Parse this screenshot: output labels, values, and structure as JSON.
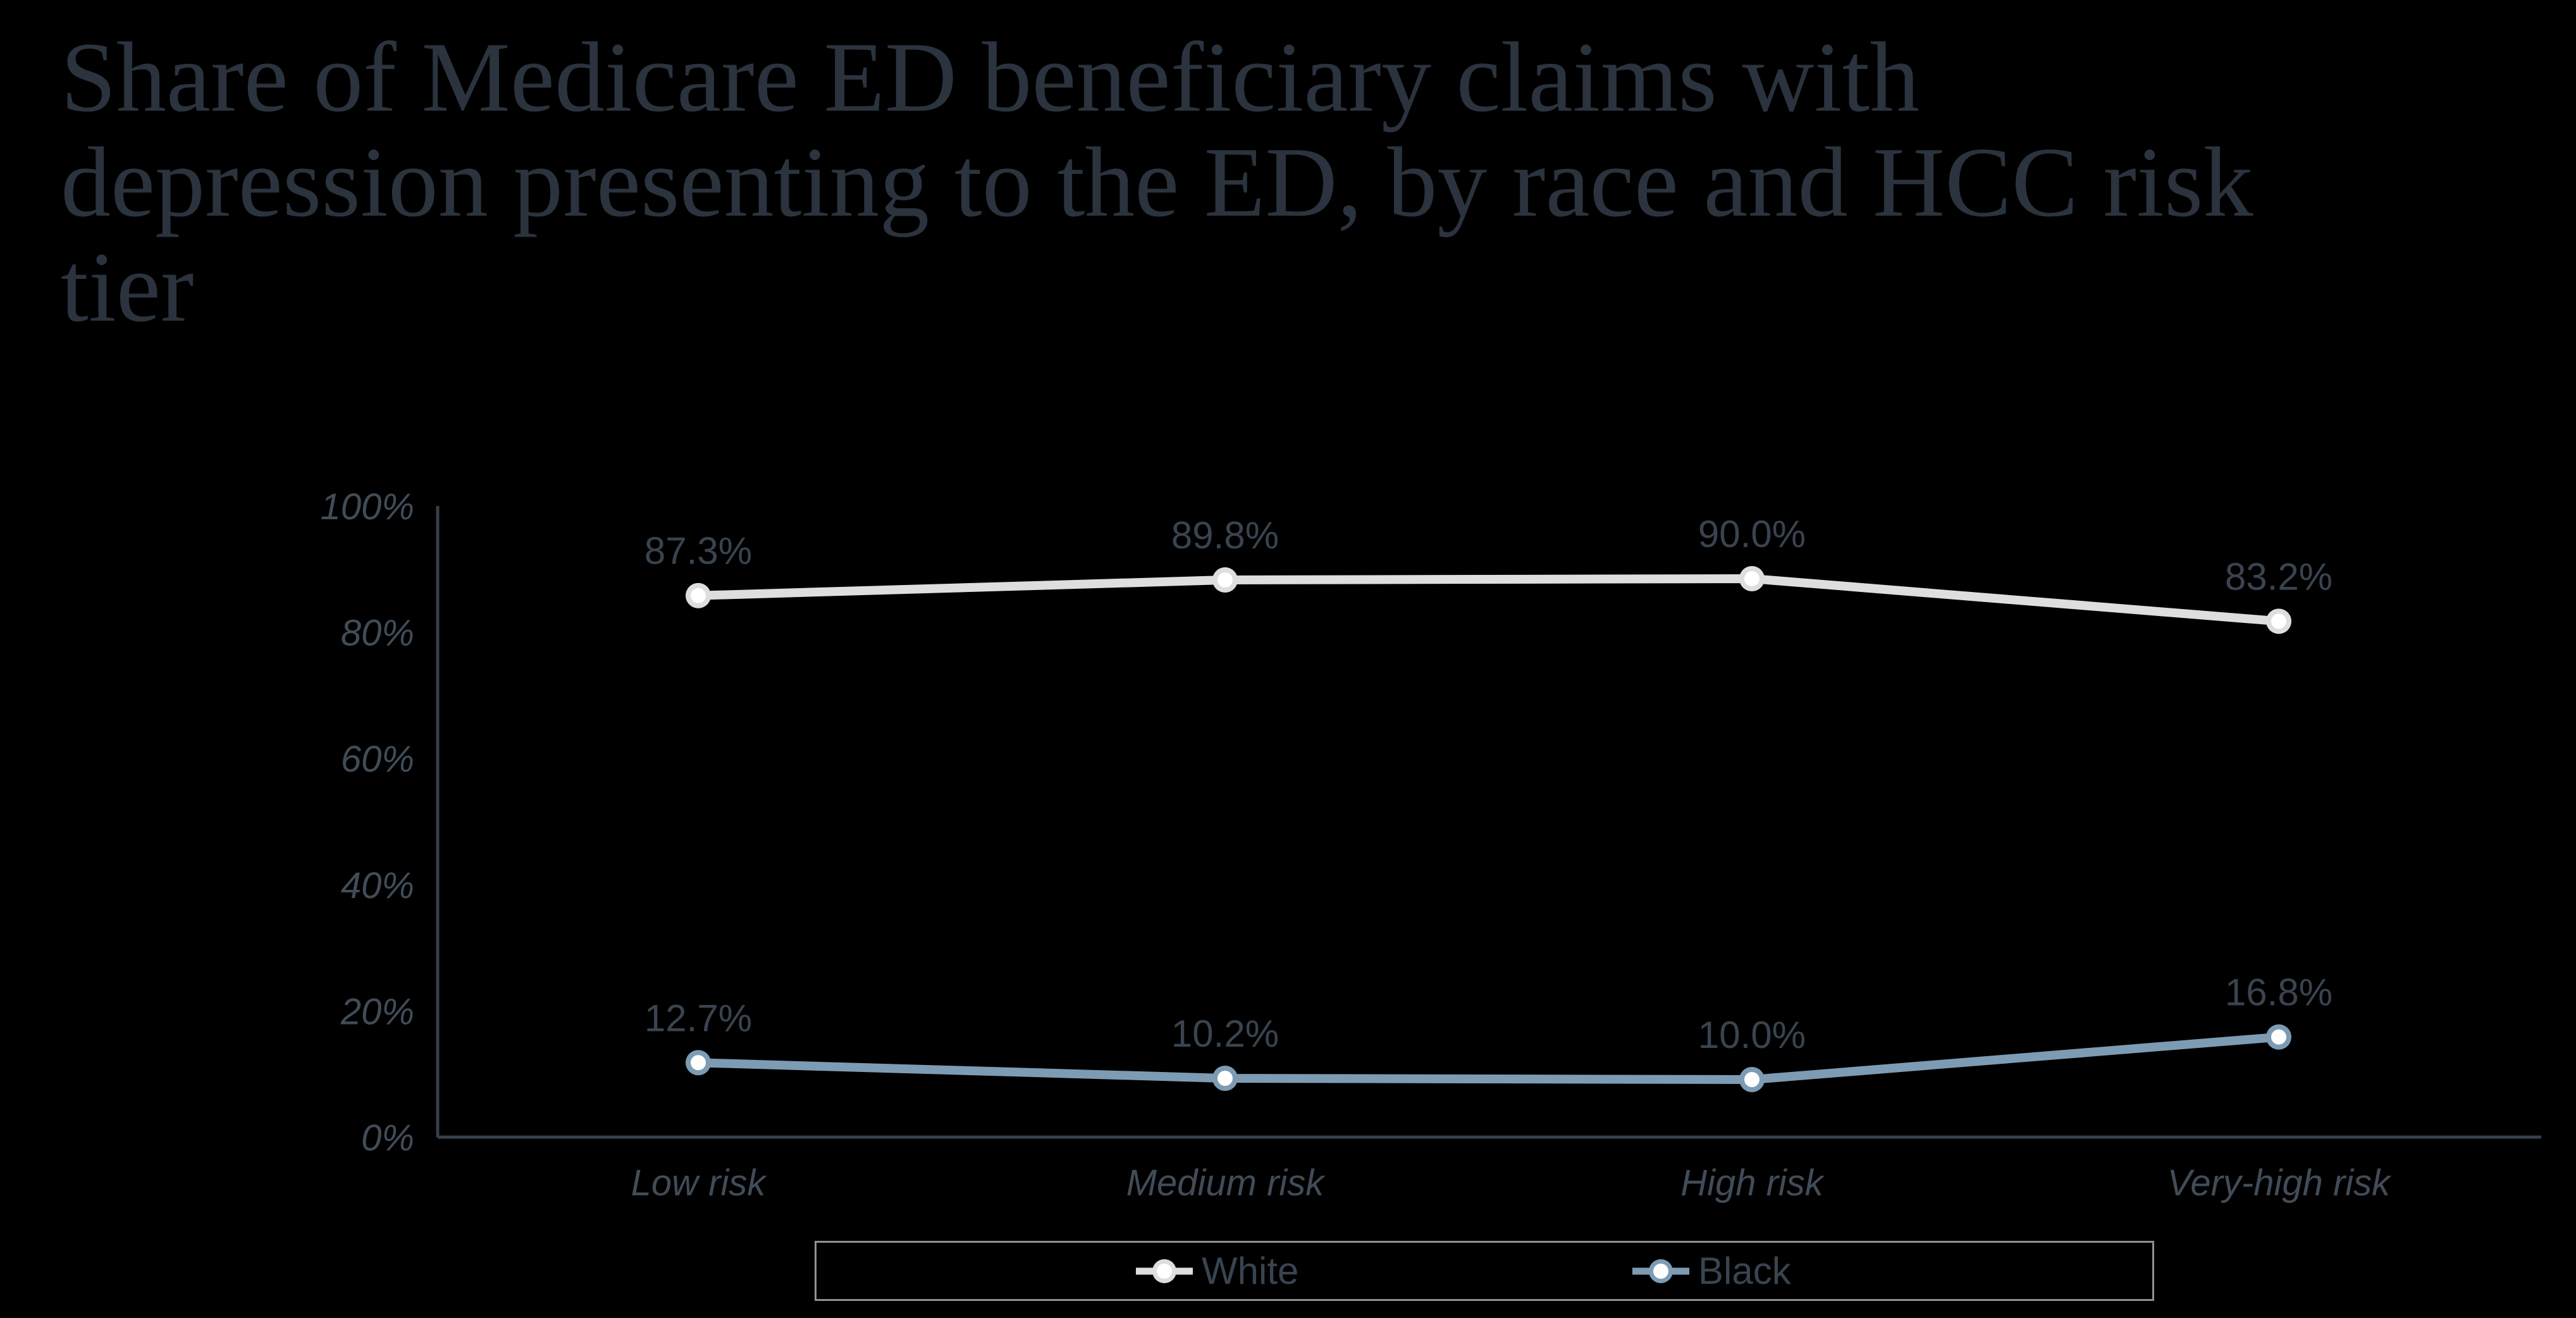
{
  "slide": {
    "background_color": "#000000"
  },
  "title": {
    "lines": [
      "Share of Medicare ED beneficiary claims with",
      "depression presenting to the ED, by race and HCC risk",
      "tier"
    ],
    "color": "#2b333e"
  },
  "chart_data": {
    "type": "line",
    "title": "Share of Medicare ED beneficiary claims with depression presenting to the ED, by race and HCC risk tier",
    "categories": [
      "Low risk",
      "Medium risk",
      "High risk",
      "Very-high risk"
    ],
    "series": [
      {
        "name": "White",
        "values": [
          87.3,
          89.8,
          90.0,
          83.2
        ],
        "color": "#dcdee0",
        "marker_fill": "#ffffff"
      },
      {
        "name": "Black",
        "values": [
          12.7,
          10.2,
          10.0,
          16.8
        ],
        "color": "#7d9cb4",
        "marker_fill": "#ffffff"
      }
    ],
    "data_label_format": "0.0%",
    "xlabel": "",
    "ylabel": "",
    "ylim": [
      0,
      100
    ],
    "y_ticks": [
      {
        "value": 0,
        "label": "0%"
      },
      {
        "value": 20,
        "label": "20%"
      },
      {
        "value": 40,
        "label": "40%"
      },
      {
        "value": 60,
        "label": "60%"
      },
      {
        "value": 80,
        "label": "80%"
      },
      {
        "value": 100,
        "label": "100%"
      }
    ],
    "grid": false,
    "legend_position": "bottom",
    "colors": {
      "axis_line": "#36404b",
      "tick_label": "#414c58",
      "data_label": "#394450",
      "legend_border": "#8e9297",
      "legend_text": "#394450"
    }
  }
}
